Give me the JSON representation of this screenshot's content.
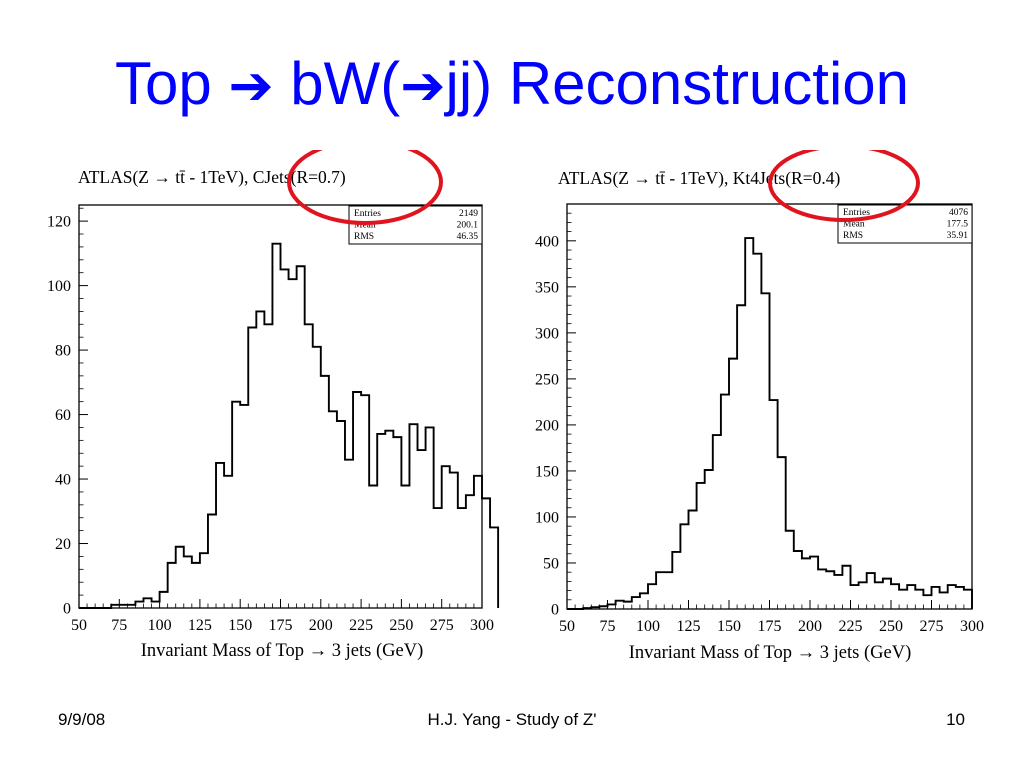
{
  "slide": {
    "title_pre": "Top ",
    "title_mid": " bW(",
    "title_post": "jj) Reconstruction",
    "arrow_icon": "right-arrow-icon"
  },
  "footer": {
    "date": "9/9/08",
    "center": "H.J. Yang - Study of Z'",
    "page": "10"
  },
  "chart_data": [
    {
      "type": "histogram",
      "title": "ATLAS(Z → tt̄ - 1TeV), CJets(R=0.7)",
      "xlabel": "Invariant Mass of Top → 3 jets (GeV)",
      "ylabel": "",
      "xlim": [
        50,
        300
      ],
      "ylim": [
        0,
        125
      ],
      "xticks": [
        50,
        75,
        100,
        125,
        150,
        175,
        200,
        225,
        250,
        275,
        300
      ],
      "yticks": [
        0,
        20,
        40,
        60,
        80,
        100,
        120
      ],
      "bin_width": 5,
      "bin_edges_start": 50,
      "counts": [
        0,
        0,
        0,
        0,
        1,
        1,
        1,
        2,
        3,
        2,
        5,
        14,
        19,
        16,
        14,
        17,
        29,
        45,
        41,
        64,
        63,
        87,
        92,
        88,
        113,
        105,
        102,
        106,
        88,
        81,
        72,
        61,
        58,
        46,
        67,
        66,
        38,
        54,
        55,
        53,
        38,
        57,
        49,
        56,
        31,
        44,
        42,
        31,
        35,
        41,
        34,
        25
      ],
      "stats": {
        "entries_label": "Entries",
        "entries": "2149",
        "mean_label": "Mean",
        "mean": "200.1",
        "rms_label": "RMS",
        "rms": "46.35"
      },
      "annotation_color": "#E0141E"
    },
    {
      "type": "histogram",
      "title": "ATLAS(Z → tt̄ - 1TeV), Kt4Jets(R=0.4)",
      "xlabel": "Invariant Mass of Top → 3 jets (GeV)",
      "ylabel": "",
      "xlim": [
        50,
        300
      ],
      "ylim": [
        0,
        440
      ],
      "xticks": [
        50,
        75,
        100,
        125,
        150,
        175,
        200,
        225,
        250,
        275,
        300
      ],
      "yticks": [
        0,
        50,
        100,
        150,
        200,
        250,
        300,
        350,
        400
      ],
      "bin_width": 5,
      "bin_edges_start": 50,
      "counts": [
        0,
        0,
        1,
        2,
        3,
        5,
        9,
        8,
        13,
        17,
        27,
        40,
        40,
        62,
        92,
        107,
        137,
        151,
        189,
        233,
        272,
        330,
        403,
        386,
        343,
        227,
        165,
        85,
        63,
        55,
        57,
        43,
        41,
        37,
        47,
        26,
        29,
        39,
        29,
        33,
        27,
        21,
        26,
        21,
        15,
        24,
        18,
        26,
        24,
        21
      ],
      "stats": {
        "entries_label": "Entries",
        "entries": "4076",
        "mean_label": "Mean",
        "mean": "177.5",
        "rms_label": "RMS",
        "rms": "35.91"
      },
      "annotation_color": "#E0141E"
    }
  ]
}
